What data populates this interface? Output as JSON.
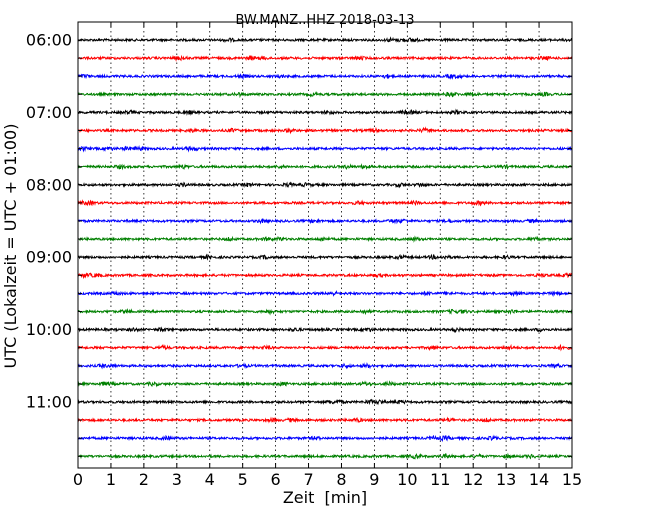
{
  "chart_data": {
    "type": "line",
    "subtype": "seismogram-helicorder",
    "title": "BW.MANZ..HHZ 2018-03-13",
    "xlabel": "Zeit  [min]",
    "ylabel": "UTC (Lokalzeit = UTC + 01:00)",
    "xlim": [
      0,
      15
    ],
    "xticks": [
      0,
      1,
      2,
      3,
      4,
      5,
      6,
      7,
      8,
      9,
      10,
      11,
      12,
      13,
      14,
      15
    ],
    "ytick_labels": [
      "06:00",
      "07:00",
      "08:00",
      "09:00",
      "10:00",
      "11:00"
    ],
    "traces_per_hour": 4,
    "grid": "vertical dotted at each minute",
    "colors_cycle": [
      "#000000",
      "#ff0000",
      "#0000ff",
      "#008000"
    ],
    "traces": [
      {
        "start": "06:00",
        "color": "#000000"
      },
      {
        "start": "06:15",
        "color": "#ff0000"
      },
      {
        "start": "06:30",
        "color": "#0000ff"
      },
      {
        "start": "06:45",
        "color": "#008000"
      },
      {
        "start": "07:00",
        "color": "#000000"
      },
      {
        "start": "07:15",
        "color": "#ff0000"
      },
      {
        "start": "07:30",
        "color": "#0000ff"
      },
      {
        "start": "07:45",
        "color": "#008000"
      },
      {
        "start": "08:00",
        "color": "#000000"
      },
      {
        "start": "08:15",
        "color": "#ff0000"
      },
      {
        "start": "08:30",
        "color": "#0000ff"
      },
      {
        "start": "08:45",
        "color": "#008000"
      },
      {
        "start": "09:00",
        "color": "#000000"
      },
      {
        "start": "09:15",
        "color": "#ff0000"
      },
      {
        "start": "09:30",
        "color": "#0000ff"
      },
      {
        "start": "09:45",
        "color": "#008000"
      },
      {
        "start": "10:00",
        "color": "#000000"
      },
      {
        "start": "10:15",
        "color": "#ff0000"
      },
      {
        "start": "10:30",
        "color": "#0000ff"
      },
      {
        "start": "10:45",
        "color": "#008000"
      },
      {
        "start": "11:00",
        "color": "#000000"
      },
      {
        "start": "11:15",
        "color": "#ff0000"
      },
      {
        "start": "11:30",
        "color": "#0000ff"
      },
      {
        "start": "11:45",
        "color": "#008000"
      }
    ]
  }
}
